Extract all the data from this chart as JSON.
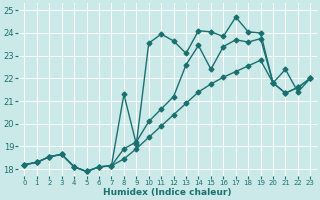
{
  "xlabel": "Humidex (Indice chaleur)",
  "xlim": [
    -0.5,
    23.5
  ],
  "ylim": [
    17.7,
    25.3
  ],
  "yticks": [
    18,
    19,
    20,
    21,
    22,
    23,
    24,
    25
  ],
  "xticks": [
    0,
    1,
    2,
    3,
    4,
    5,
    6,
    7,
    8,
    9,
    10,
    11,
    12,
    13,
    14,
    15,
    16,
    17,
    18,
    19,
    20,
    21,
    22,
    23
  ],
  "bg_color": "#cce9e9",
  "line_color": "#1a7070",
  "grid_color": "#ffffff",
  "line1_x": [
    0,
    1,
    2,
    3,
    4,
    5,
    6,
    7,
    8,
    9,
    10,
    11,
    12,
    13,
    14,
    15,
    16,
    17,
    18,
    19,
    20,
    21,
    22,
    23
  ],
  "line1_y": [
    18.2,
    18.3,
    18.55,
    18.65,
    18.1,
    17.9,
    18.1,
    18.15,
    21.3,
    19.1,
    23.55,
    23.95,
    23.65,
    23.1,
    24.1,
    24.05,
    23.85,
    24.7,
    24.05,
    24.0,
    21.8,
    21.35,
    21.6,
    22.0
  ],
  "line2_x": [
    0,
    1,
    2,
    3,
    4,
    5,
    6,
    7,
    8,
    9,
    10,
    11,
    12,
    13,
    14,
    15,
    16,
    17,
    18,
    19,
    20,
    21,
    22,
    23
  ],
  "line2_y": [
    18.2,
    18.3,
    18.55,
    18.65,
    18.1,
    17.9,
    18.1,
    18.15,
    18.45,
    18.9,
    19.4,
    19.9,
    20.4,
    20.9,
    21.4,
    21.75,
    22.05,
    22.3,
    22.55,
    22.8,
    21.8,
    21.35,
    21.6,
    22.0
  ],
  "line3_x": [
    0,
    1,
    2,
    3,
    4,
    5,
    6,
    7,
    8,
    9,
    10,
    11,
    12,
    13,
    14,
    15,
    16,
    17,
    18,
    19,
    20,
    21,
    22,
    23
  ],
  "line3_y": [
    18.2,
    18.3,
    18.55,
    18.65,
    18.1,
    17.9,
    18.1,
    18.15,
    18.9,
    19.2,
    20.1,
    20.65,
    21.2,
    22.6,
    23.45,
    22.4,
    23.4,
    23.7,
    23.6,
    23.75,
    21.8,
    22.4,
    21.4,
    22.0
  ],
  "marker_size": 2.5,
  "line_width": 1.0
}
